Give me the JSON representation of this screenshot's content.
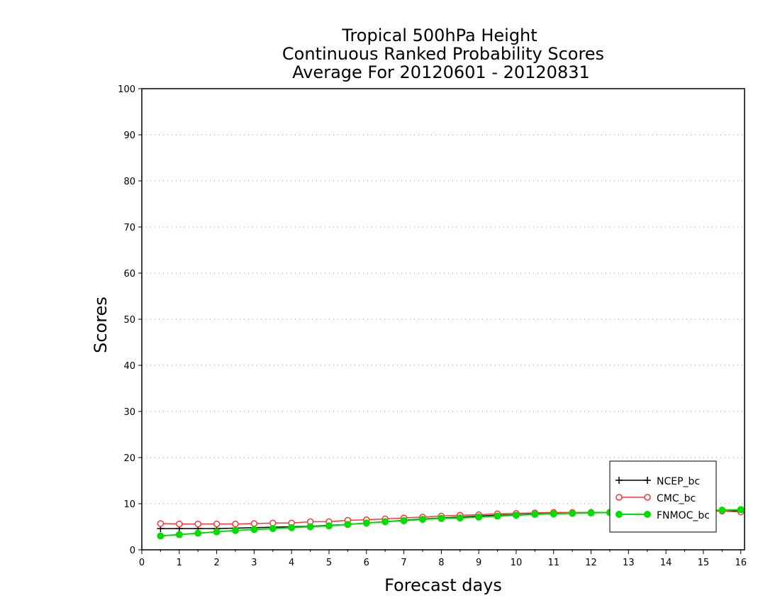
{
  "chart_data": {
    "type": "line",
    "title_lines": [
      "Tropical 500hPa Height",
      "Continuous Ranked Probability Scores",
      "Average For 20120601 - 20120831"
    ],
    "xlabel": "Forecast days",
    "ylabel": "Scores",
    "xlim": [
      0,
      16.1
    ],
    "ylim": [
      0,
      100
    ],
    "xticks": [
      "0",
      "1",
      "2",
      "3",
      "4",
      "5",
      "6",
      "7",
      "8",
      "9",
      "10",
      "11",
      "12",
      "13",
      "14",
      "15",
      "16"
    ],
    "yticks": [
      "0",
      "10",
      "20",
      "30",
      "40",
      "50",
      "60",
      "70",
      "80",
      "90",
      "100"
    ],
    "grid": "horizontal dotted",
    "legend_position": "bottom-right",
    "x": [
      0.5,
      1,
      1.5,
      2,
      2.5,
      3,
      3.5,
      4,
      4.5,
      5,
      5.5,
      6,
      6.5,
      7,
      7.5,
      8,
      8.5,
      9,
      9.5,
      10,
      10.5,
      11,
      11.5,
      12,
      12.5,
      13,
      13.5,
      14,
      14.5,
      15,
      15.5,
      16
    ],
    "series": [
      {
        "name": "NCEP_bc",
        "color": "#000000",
        "marker": "plus",
        "values": [
          4.6,
          4.6,
          4.6,
          4.6,
          4.7,
          4.8,
          4.9,
          5.0,
          5.1,
          5.3,
          5.5,
          5.8,
          6.1,
          6.4,
          6.7,
          6.9,
          7.1,
          7.3,
          7.5,
          7.6,
          7.8,
          7.9,
          8.0,
          8.1,
          8.1,
          8.2,
          8.2,
          8.3,
          8.3,
          8.4,
          8.5,
          8.5
        ]
      },
      {
        "name": "CMC_bc",
        "color": "#ff3333",
        "marker": "open-circle",
        "values": [
          5.7,
          5.6,
          5.6,
          5.6,
          5.6,
          5.7,
          5.8,
          5.8,
          6.1,
          6.1,
          6.4,
          6.5,
          6.7,
          6.9,
          7.1,
          7.3,
          7.5,
          7.6,
          7.8,
          7.9,
          8.0,
          8.1,
          8.1,
          8.1,
          8.1,
          8.2,
          8.2,
          8.3,
          8.3,
          8.3,
          8.4,
          8.2
        ]
      },
      {
        "name": "FNMOC_bc",
        "color": "#00dd00",
        "marker": "filled-circle",
        "values": [
          3.0,
          3.3,
          3.6,
          3.9,
          4.2,
          4.4,
          4.6,
          4.8,
          5.0,
          5.2,
          5.5,
          5.8,
          6.1,
          6.3,
          6.6,
          6.8,
          6.9,
          7.1,
          7.3,
          7.5,
          7.7,
          7.8,
          7.9,
          8.0,
          8.1,
          8.2,
          8.3,
          8.3,
          8.4,
          8.5,
          8.6,
          8.7
        ]
      }
    ]
  }
}
